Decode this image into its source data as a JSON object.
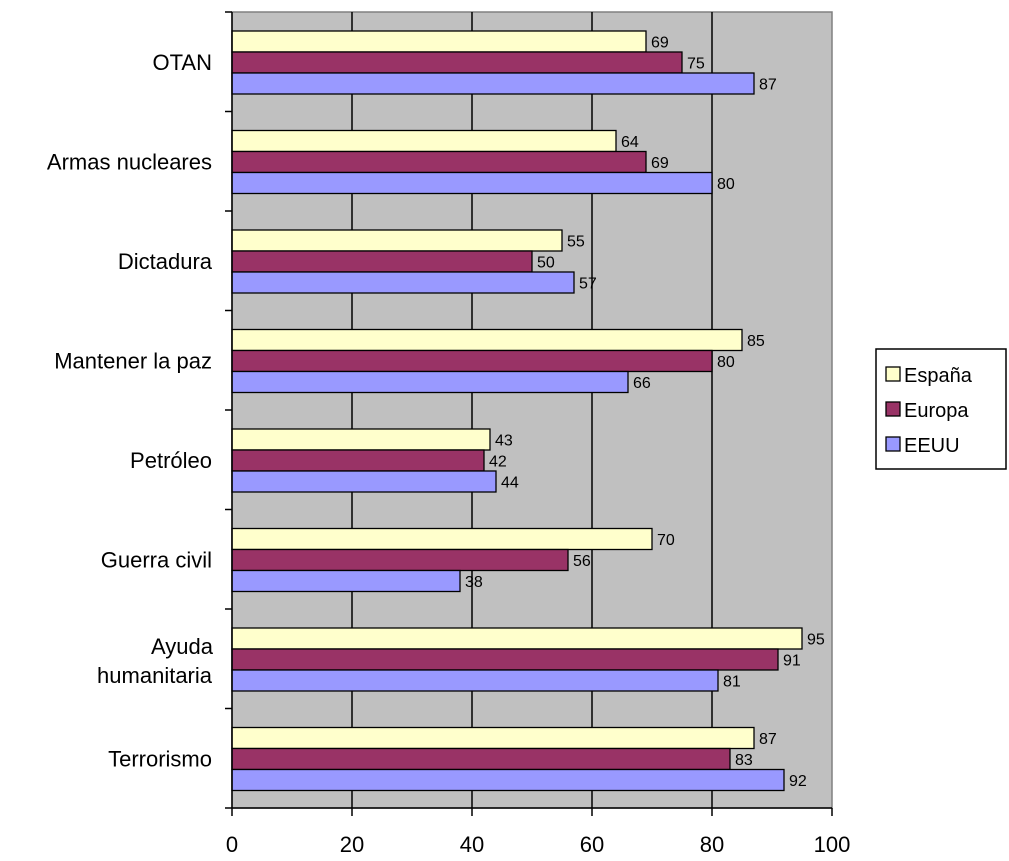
{
  "chart_data": {
    "type": "bar",
    "orientation": "horizontal",
    "title": "",
    "xlabel": "",
    "ylabel": "",
    "xlim": [
      0,
      100
    ],
    "x_ticks": [
      0,
      20,
      40,
      60,
      80,
      100
    ],
    "grid": true,
    "legend_position": "right",
    "categories": [
      "OTAN",
      "Armas nucleares",
      "Dictadura",
      "Mantener la paz",
      "Petróleo",
      "Guerra civil",
      "Ayuda humanitaria",
      "Terrorismo"
    ],
    "series": [
      {
        "name": "España",
        "color": "#FFFFCC",
        "values": [
          69,
          64,
          55,
          85,
          43,
          70,
          95,
          87
        ]
      },
      {
        "name": "Europa",
        "color": "#993366",
        "values": [
          75,
          69,
          50,
          80,
          42,
          56,
          91,
          83
        ]
      },
      {
        "name": "EEUU",
        "color": "#9999FF",
        "values": [
          87,
          80,
          57,
          66,
          44,
          38,
          81,
          92
        ]
      }
    ],
    "plot_background": "#C0C0C0"
  }
}
